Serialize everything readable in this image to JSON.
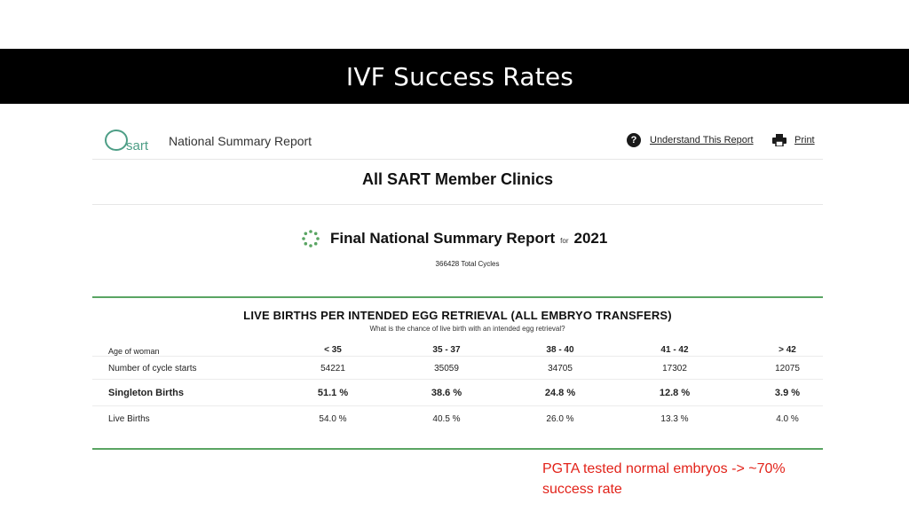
{
  "slide": {
    "title": "IVF Success Rates",
    "note": "PGTA tested normal embryos -> ~70% success rate"
  },
  "header": {
    "logo_text": "sart",
    "report_label": "National Summary Report",
    "help_icon": "question-circle-icon",
    "understand_link": "Understand This Report",
    "print_icon": "printer-icon",
    "print_link": "Print"
  },
  "report": {
    "clinics_title": "All SART Member Clinics",
    "final_title": "Final National Summary Report",
    "final_for": "for",
    "final_year": "2021",
    "total_cycles": "366428 Total Cycles"
  },
  "table": {
    "title": "LIVE BIRTHS PER INTENDED EGG RETRIEVAL (ALL EMBRYO TRANSFERS)",
    "subtitle": "What is the chance of live birth with an intended egg retrieval?",
    "header_label": "Age of woman",
    "columns": [
      "< 35",
      "35 - 37",
      "38 - 40",
      "41 - 42",
      "> 42"
    ],
    "rows": [
      {
        "label": "Number of cycle starts",
        "values": [
          "54221",
          "35059",
          "34705",
          "17302",
          "12075"
        ]
      },
      {
        "label": "Singleton Births",
        "values": [
          "51.1 %",
          "38.6 %",
          "24.8 %",
          "12.8 %",
          "3.9 %"
        ]
      },
      {
        "label": "Live Births",
        "values": [
          "54.0 %",
          "40.5 %",
          "26.0 %",
          "13.3 %",
          "4.0 %"
        ]
      }
    ]
  },
  "colors": {
    "title_bar": "#000000",
    "accent_green": "#5aa563",
    "logo_teal": "#4d9e86",
    "note_red": "#e2231a"
  }
}
